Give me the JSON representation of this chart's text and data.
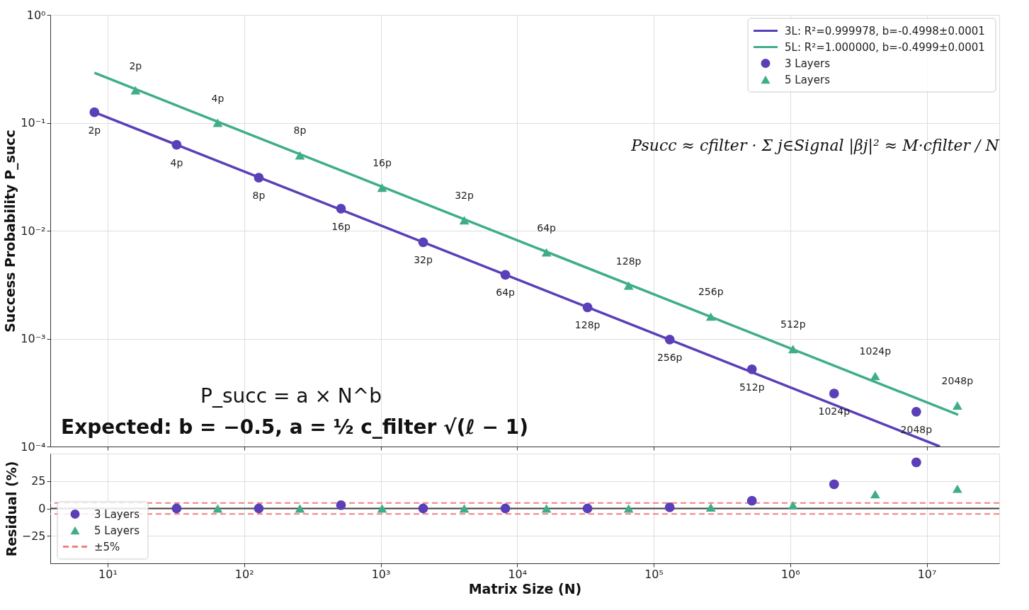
{
  "chart_data": [
    {
      "type": "scatter",
      "ylabel": "Success Probability P_succ",
      "log": "xy",
      "grid": true,
      "legend": "top right",
      "tick_labels": "y",
      "xlim": [
        3.8,
        34000000
      ],
      "xticks": [
        {
          "value": 10,
          "label": null
        },
        {
          "value": 100,
          "label": null
        },
        {
          "value": 1000,
          "label": null
        },
        {
          "value": 10000,
          "label": null
        },
        {
          "value": 100000,
          "label": null
        },
        {
          "value": 1000000,
          "label": null
        },
        {
          "value": 10000000,
          "label": null
        }
      ],
      "ylim": [
        0.0001,
        1
      ],
      "yticks": [
        {
          "value": 0.0001,
          "label": "10⁻⁴"
        },
        {
          "value": 0.001,
          "label": "10⁻³"
        },
        {
          "value": 0.01,
          "label": "10⁻²"
        },
        {
          "value": 0.1,
          "label": "10⁻¹"
        },
        {
          "value": 1,
          "label": "10⁰"
        }
      ],
      "series": [
        {
          "name": "3L: R²=0.999978, b=-0.4998±0.0001",
          "type": "line",
          "color": "#5b3fb8",
          "x": [
            8,
            12500000
          ],
          "values": [
            0.125,
            0.0001
          ]
        },
        {
          "name": "5L: R²=1.000000, b=-0.4999±0.0001",
          "type": "line",
          "color": "#3fae88",
          "x": [
            8,
            17000000
          ],
          "values": [
            0.29,
            0.000197
          ]
        },
        {
          "name": "3 Layers",
          "marker": "circle",
          "color": "#5b3fb8",
          "x": [
            8,
            32,
            128,
            512,
            2048,
            8192,
            32768,
            131072,
            524288,
            2097152,
            8388608
          ],
          "values": [
            0.125,
            0.0625,
            0.031,
            0.016,
            0.0078,
            0.0039,
            0.00195,
            0.00098,
            0.00052,
            0.00031,
            0.00021
          ]
        },
        {
          "name": "5 Layers",
          "marker": "triangle",
          "color": "#3fae88",
          "x": [
            16,
            64,
            256,
            1024,
            4096,
            16384,
            65536,
            262144,
            1048576,
            4194304,
            16777216
          ],
          "values": [
            0.2,
            0.1,
            0.05,
            0.025,
            0.0125,
            0.0063,
            0.0031,
            0.0016,
            0.0008,
            0.00045,
            0.00024
          ]
        }
      ],
      "annotations": [
        "Psucc ≈ cfilter · Σ j∈Signal |βj|² ≈ M·cfilter / N",
        "P_succ = a × N^b",
        "Expected: b = −0.5, a = ½ c_filter √(ℓ − 1)",
        {
          "text": "2p",
          "x": 8,
          "y": 0.125
        },
        {
          "text": "4p",
          "x": 32,
          "y": 0.0625
        },
        {
          "text": "8p",
          "x": 128,
          "y": 0.031
        },
        {
          "text": "16p",
          "x": 512,
          "y": 0.016
        },
        {
          "text": "32p",
          "x": 2048,
          "y": 0.0078
        },
        {
          "text": "64p",
          "x": 8192,
          "y": 0.0039
        },
        {
          "text": "128p",
          "x": 32768,
          "y": 0.00195
        },
        {
          "text": "256p",
          "x": 131072,
          "y": 0.00098
        },
        {
          "text": "512p",
          "x": 524288,
          "y": 0.00052
        },
        {
          "text": "1024p",
          "x": 2097152,
          "y": 0.00031
        },
        {
          "text": "2048p",
          "x": 8388608,
          "y": 0.00021
        },
        {
          "text": "2p",
          "x": 16,
          "y": 0.2
        },
        {
          "text": "4p",
          "x": 64,
          "y": 0.1
        },
        {
          "text": "8p",
          "x": 256,
          "y": 0.05
        },
        {
          "text": "16p",
          "x": 1024,
          "y": 0.025
        },
        {
          "text": "32p",
          "x": 4096,
          "y": 0.0125
        },
        {
          "text": "64p",
          "x": 16384,
          "y": 0.0063
        },
        {
          "text": "128p",
          "x": 65536,
          "y": 0.0031
        },
        {
          "text": "256p",
          "x": 262144,
          "y": 0.0016
        },
        {
          "text": "512p",
          "x": 1048576,
          "y": 0.0008
        },
        {
          "text": "1024p",
          "x": 4194304,
          "y": 0.00045
        },
        {
          "text": "2048p",
          "x": 16777216,
          "y": 0.00024
        }
      ]
    },
    {
      "type": "scatter",
      "xlabel": "Matrix Size (N)",
      "ylabel": "Residual (%)",
      "log": "x",
      "grid": true,
      "legend": "bottom left",
      "xlim": [
        3.8,
        34000000
      ],
      "xticks": [
        {
          "value": 10,
          "label": "10¹"
        },
        {
          "value": 100,
          "label": "10²"
        },
        {
          "value": 1000,
          "label": "10³"
        },
        {
          "value": 10000,
          "label": "10⁴"
        },
        {
          "value": 100000,
          "label": "10⁵"
        },
        {
          "value": 1000000,
          "label": "10⁶"
        },
        {
          "value": 10000000,
          "label": "10⁷"
        }
      ],
      "ylim": [
        -50,
        50
      ],
      "yticks": [
        {
          "value": -25,
          "label": "−25"
        },
        0,
        25
      ],
      "series": [
        {
          "name": "3 Layers",
          "marker": "circle",
          "color": "#5b3fb8",
          "x": [
            32,
            128,
            512,
            2048,
            8192,
            32768,
            131072,
            524288,
            2097152,
            8388608
          ],
          "values": [
            0,
            0,
            3,
            0,
            0,
            0,
            1,
            7,
            22,
            42
          ]
        },
        {
          "name": "5 Layers",
          "marker": "triangle",
          "color": "#3fae88",
          "x": [
            64,
            256,
            1024,
            4096,
            16384,
            65536,
            262144,
            1048576,
            4194304,
            16777216
          ],
          "values": [
            0,
            0,
            0,
            0,
            0,
            0,
            1,
            3,
            13,
            18
          ]
        }
      ],
      "ref_lines": [
        {
          "axis": "y",
          "value": 0,
          "color": "#444444",
          "line_style": "solid"
        },
        {
          "axis": "y",
          "value": 5,
          "label": "±5%",
          "color": "#f08080",
          "line_style": "dashed"
        },
        {
          "axis": "y",
          "value": -5,
          "color": "#f08080",
          "line_style": "dashed"
        }
      ]
    }
  ]
}
